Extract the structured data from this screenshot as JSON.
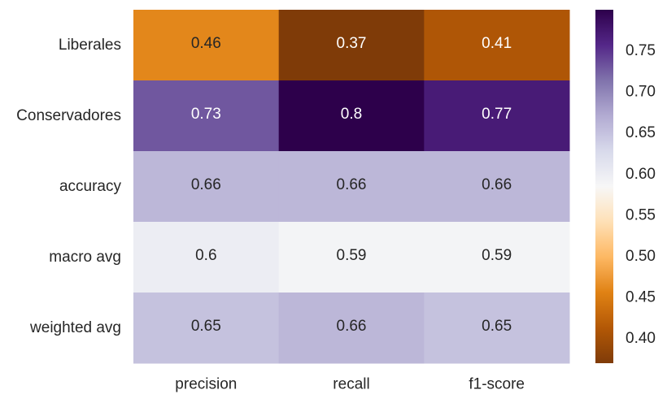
{
  "chart_data": {
    "type": "heatmap",
    "title": "",
    "xlabel": "",
    "ylabel": "",
    "x_categories": [
      "precision",
      "recall",
      "f1-score"
    ],
    "y_categories": [
      "Liberales",
      "Conservadores",
      "accuracy",
      "macro avg",
      "weighted avg"
    ],
    "values": [
      [
        0.46,
        0.37,
        0.41
      ],
      [
        0.73,
        0.8,
        0.77
      ],
      [
        0.66,
        0.66,
        0.66
      ],
      [
        0.6,
        0.59,
        0.59
      ],
      [
        0.65,
        0.66,
        0.65
      ]
    ],
    "cell_labels": [
      [
        "0.46",
        "0.37",
        "0.41"
      ],
      [
        "0.73",
        "0.8",
        "0.77"
      ],
      [
        "0.66",
        "0.66",
        "0.66"
      ],
      [
        "0.6",
        "0.59",
        "0.59"
      ],
      [
        "0.65",
        "0.66",
        "0.65"
      ]
    ],
    "colormap": "PuOr",
    "colorbar": {
      "vmin": 0.37,
      "vmax": 0.8,
      "ticks": [
        0.4,
        0.45,
        0.5,
        0.55,
        0.6,
        0.65,
        0.7,
        0.75
      ],
      "tick_labels": [
        "0.40",
        "0.45",
        "0.50",
        "0.55",
        "0.60",
        "0.65",
        "0.70",
        "0.75"
      ]
    },
    "colors": {
      "low": "#7f3b08",
      "mid": "#f7f7f7",
      "high": "#2d004b",
      "text_dark": "#262626",
      "text_light": "#ffffff"
    }
  }
}
